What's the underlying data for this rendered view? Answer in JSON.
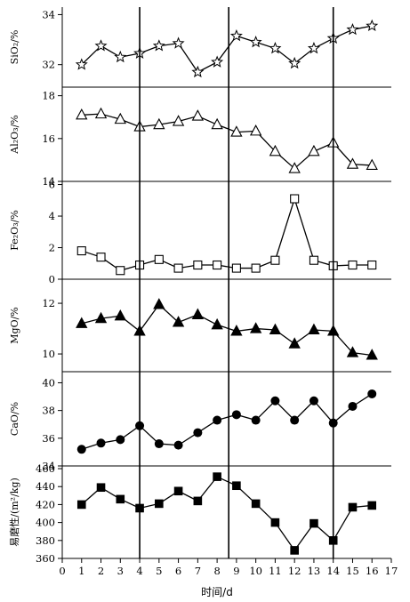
{
  "chart_data": [
    {
      "type": "line",
      "ylabel": "SiO₂/%",
      "ylim": [
        31.1,
        34.3
      ],
      "yticks": [
        32,
        34
      ],
      "marker": "star-open",
      "x": [
        1,
        2,
        3,
        4,
        5,
        6,
        7,
        8,
        9,
        10,
        11,
        12,
        13,
        14,
        15,
        16
      ],
      "values": [
        32.0,
        32.75,
        32.3,
        32.45,
        32.75,
        32.85,
        31.7,
        32.1,
        33.15,
        32.9,
        32.65,
        32.05,
        32.65,
        33.05,
        33.4,
        33.55
      ]
    },
    {
      "type": "line",
      "ylabel": "Al₂O₃/%",
      "ylim": [
        14.0,
        18.4
      ],
      "yticks": [
        14,
        16,
        18
      ],
      "marker": "triangle-open",
      "x": [
        1,
        2,
        3,
        4,
        5,
        6,
        7,
        8,
        9,
        10,
        11,
        12,
        13,
        14,
        15,
        16
      ],
      "values": [
        17.1,
        17.15,
        16.9,
        16.55,
        16.65,
        16.8,
        17.05,
        16.65,
        16.3,
        16.35,
        15.4,
        14.6,
        15.4,
        15.8,
        14.8,
        14.75
      ]
    },
    {
      "type": "line",
      "ylabel": "Fe₂O₃/%",
      "ylim": [
        0,
        6.2
      ],
      "yticks": [
        0,
        2,
        4,
        6
      ],
      "marker": "square-open",
      "x": [
        1,
        2,
        3,
        4,
        5,
        6,
        7,
        8,
        9,
        10,
        11,
        12,
        13,
        14,
        15,
        16
      ],
      "values": [
        1.8,
        1.4,
        0.55,
        0.9,
        1.25,
        0.7,
        0.9,
        0.9,
        0.7,
        0.7,
        1.2,
        5.1,
        1.2,
        0.85,
        0.9,
        0.9
      ]
    },
    {
      "type": "line",
      "ylabel": "MgO/%",
      "ylim": [
        9.3,
        12.95
      ],
      "yticks": [
        10,
        12
      ],
      "marker": "triangle-filled",
      "x": [
        1,
        2,
        3,
        4,
        5,
        6,
        7,
        8,
        9,
        10,
        11,
        12,
        13,
        14,
        15,
        16
      ],
      "values": [
        11.2,
        11.4,
        11.5,
        10.9,
        11.95,
        11.25,
        11.55,
        11.15,
        10.9,
        11.0,
        10.95,
        10.4,
        10.95,
        10.9,
        10.05,
        9.95
      ]
    },
    {
      "type": "line",
      "ylabel": "CaO/%",
      "ylim": [
        34.0,
        40.8
      ],
      "yticks": [
        34,
        36,
        38,
        40
      ],
      "marker": "circle-filled",
      "x": [
        1,
        2,
        3,
        4,
        5,
        6,
        7,
        8,
        9,
        10,
        11,
        12,
        13,
        14,
        15,
        16
      ],
      "values": [
        35.2,
        35.65,
        35.9,
        36.9,
        35.6,
        35.5,
        36.4,
        37.3,
        37.7,
        37.3,
        38.7,
        37.3,
        38.7,
        37.1,
        38.3,
        39.2
      ]
    },
    {
      "type": "line",
      "ylabel": "易磨性/(m²/kg)",
      "ylim": [
        360,
        463
      ],
      "yticks": [
        360,
        380,
        400,
        420,
        440,
        460
      ],
      "marker": "square-filled",
      "x": [
        1,
        2,
        3,
        4,
        5,
        6,
        7,
        8,
        9,
        10,
        11,
        12,
        13,
        14,
        15,
        16
      ],
      "values": [
        420,
        439,
        426,
        416,
        421,
        435,
        424,
        451,
        441,
        421,
        400,
        369,
        399,
        380,
        417,
        419
      ]
    }
  ],
  "x_axis": {
    "xlabel": "时间/d",
    "xlim": [
      0,
      17
    ],
    "ticks": [
      0,
      1,
      2,
      3,
      4,
      5,
      6,
      7,
      8,
      9,
      10,
      11,
      12,
      13,
      14,
      15,
      16,
      17
    ]
  },
  "vertical_lines": [
    4,
    8.6,
    14
  ]
}
